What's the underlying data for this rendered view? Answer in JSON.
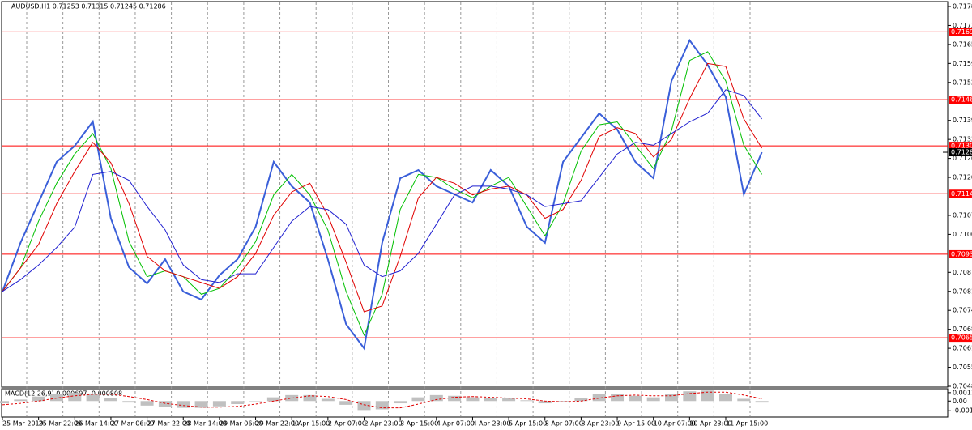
{
  "chart_data": [
    {
      "type": "line",
      "title": "AUDUSD,H1  0.71253 0.71315 0.71245 0.71286",
      "categories": [
        "25 Mar 2019",
        null,
        "25 Mar 22:00",
        null,
        "26 Mar 14:00",
        null,
        "27 Mar 06:00",
        null,
        "27 Mar 22:00",
        null,
        "28 Mar 14:00",
        null,
        "29 Mar 06:00",
        null,
        "29 Mar 22:00",
        null,
        "1 Apr 15:00",
        null,
        "2 Apr 07:00",
        null,
        "2 Apr 23:00",
        null,
        "3 Apr 15:00",
        null,
        "4 Apr 07:00",
        null,
        "4 Apr 23:00",
        null,
        "5 Apr 15:00",
        null,
        "8 Apr 07:00",
        null,
        "8 Apr 23:00",
        null,
        "9 Apr 15:00",
        null,
        "10 Apr 07:00",
        null,
        "10 Apr 23:00",
        null,
        "11 Apr 15:00",
        null,
        null
      ],
      "series": [
        {
          "color": "#3a5fd9",
          "width": 2,
          "values": [
            0.70809,
            0.70976,
            0.71114,
            0.71253,
            0.71308,
            0.71391,
            0.71059,
            0.70892,
            0.70837,
            0.7092,
            0.70809,
            0.70782,
            0.70865,
            0.7092,
            0.71031,
            0.71253,
            0.7117,
            0.71114,
            0.7092,
            0.70698,
            0.70615,
            0.70976,
            0.71197,
            0.71225,
            0.7117,
            0.71142,
            0.71114,
            0.71225,
            0.7117,
            0.71031,
            0.70976,
            0.71253,
            0.71336,
            0.71419,
            0.71364,
            0.71253,
            0.71197,
            0.7153,
            0.71669,
            0.71585,
            0.71475,
            0.71142,
            0.71286
          ]
        },
        {
          "color": "#00c000",
          "width": 1,
          "values": [
            0.7081,
            0.7089,
            0.7105,
            0.7118,
            0.7128,
            0.7135,
            0.7123,
            0.7098,
            0.7086,
            0.7088,
            0.7086,
            0.708,
            0.7082,
            0.7089,
            0.7098,
            0.7114,
            0.7121,
            0.7114,
            0.7102,
            0.7081,
            0.7066,
            0.708,
            0.7109,
            0.7121,
            0.712,
            0.7116,
            0.7113,
            0.7117,
            0.712,
            0.711,
            0.71,
            0.7111,
            0.7129,
            0.7138,
            0.7139,
            0.7131,
            0.7123,
            0.7136,
            0.716,
            0.7163,
            0.7153,
            0.7131,
            0.7121
          ]
        },
        {
          "color": "#e00000",
          "width": 1,
          "values": [
            0.7081,
            0.7089,
            0.7097,
            0.7111,
            0.7122,
            0.7132,
            0.7125,
            0.7111,
            0.7093,
            0.7088,
            0.7086,
            0.7084,
            0.7082,
            0.7086,
            0.7094,
            0.7107,
            0.7115,
            0.7118,
            0.7107,
            0.7091,
            0.7074,
            0.7076,
            0.7093,
            0.7113,
            0.712,
            0.7118,
            0.7114,
            0.7116,
            0.7117,
            0.7114,
            0.7106,
            0.7109,
            0.7119,
            0.7134,
            0.7137,
            0.7135,
            0.7127,
            0.7133,
            0.7147,
            0.7159,
            0.7158,
            0.714,
            0.713
          ]
        },
        {
          "color": "#2020d0",
          "width": 1,
          "values": [
            0.7081,
            0.7085,
            0.709,
            0.7096,
            0.7103,
            0.7121,
            0.7122,
            0.7119,
            0.711,
            0.7102,
            0.709,
            0.7085,
            0.7084,
            0.7087,
            0.7087,
            0.7096,
            0.7105,
            0.711,
            0.7109,
            0.7104,
            0.709,
            0.7086,
            0.7088,
            0.7094,
            0.7104,
            0.7114,
            0.7117,
            0.7117,
            0.7116,
            0.7114,
            0.711,
            0.7111,
            0.7112,
            0.712,
            0.7128,
            0.7132,
            0.7131,
            0.7135,
            0.7139,
            0.7142,
            0.715,
            0.7148,
            0.714
          ]
        }
      ],
      "levels": [
        0.71698,
        0.71466,
        0.71308,
        0.71144,
        0.70937,
        0.70651
      ],
      "level_color": "#ff0000",
      "current_price": 0.71286,
      "ylim": [
        0.70485,
        0.71785
      ],
      "yticks": [
        0.71785,
        {
          "value": 0.7172,
          "label": "0.71720"
        },
        0.71655,
        {
          "value": 0.7159,
          "label": "0.71590"
        },
        0.71525,
        0.71395,
        {
          "value": 0.7133,
          "label": "0.71330"
        },
        0.71265,
        {
          "value": 0.712,
          "label": "0.71200"
        },
        {
          "value": 0.7107,
          "label": "0.71070"
        },
        0.71005,
        0.70875,
        {
          "value": 0.7081,
          "label": "0.70810"
        },
        0.70745,
        {
          "value": 0.7068,
          "label": "0.70680"
        },
        0.70615,
        {
          "value": 0.7055,
          "label": "0.70550"
        },
        0.70485
      ],
      "grid": true
    },
    {
      "type": "macd",
      "title": "MACD(12,26,9) 0.000697 -0.000808",
      "series": [
        {
          "color": "#c0c0c0",
          "values": [
            -0.0003,
            0.0002,
            0.0006,
            0.0009,
            0.0011,
            0.001,
            0.0004,
            -0.0002,
            -0.0006,
            -0.0008,
            -0.0009,
            -0.0009,
            -0.0007,
            -0.0004,
            0,
            0.0005,
            0.0008,
            0.0008,
            0.0003,
            -0.0005,
            -0.0012,
            -0.0011,
            -0.0003,
            0.0005,
            0.0008,
            0.0007,
            0.0005,
            0.0004,
            0.0004,
            0.0001,
            -0.0003,
            -0.0001,
            0.0004,
            0.0009,
            0.001,
            0.0007,
            0.0005,
            0.0009,
            0.0013,
            0.0014,
            0.001,
            0.0003,
            -0.0002
          ]
        },
        {
          "color": "#e00000",
          "dashed": true,
          "values": [
            -0.0005,
            -0.0003,
            0,
            0.0004,
            0.0007,
            0.0009,
            0.0009,
            0.0006,
            0.0002,
            -0.0003,
            -0.0006,
            -0.0008,
            -0.0008,
            -0.0007,
            -0.0004,
            0,
            0.0004,
            0.0007,
            0.0006,
            0.0002,
            -0.0005,
            -0.0009,
            -0.0009,
            -0.0004,
            0.0002,
            0.0005,
            0.0006,
            0.0005,
            0.0004,
            0.0003,
            0,
            -0.0001,
            0,
            0.0004,
            0.0007,
            0.0008,
            0.0007,
            0.0007,
            0.001,
            0.0012,
            0.0012,
            0.0008,
            0.0003
          ]
        }
      ],
      "ylim": [
        -0.00202,
        0.00154
      ],
      "yticks": [
        0.001121,
        {
          "value": 0,
          "label": "0.00"
        },
        -0.00129
      ]
    }
  ]
}
